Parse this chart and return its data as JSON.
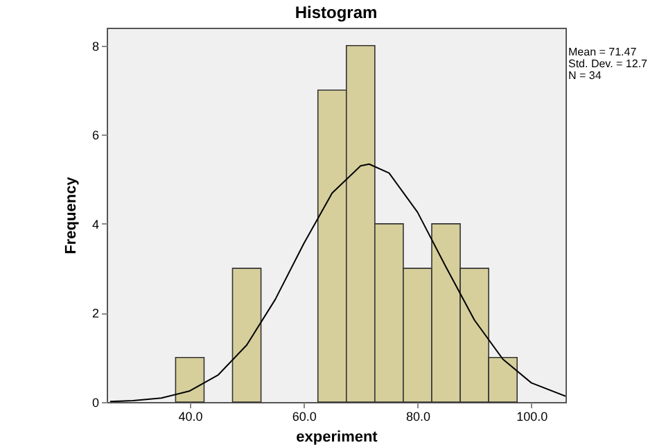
{
  "chart_data": {
    "type": "histogram",
    "title": "Histogram",
    "xlabel": "experiment",
    "ylabel": "Frequency",
    "bins": [
      37.5,
      42.5,
      47.5,
      52.5,
      57.5,
      62.5,
      67.5,
      72.5,
      77.5,
      82.5,
      87.5,
      92.5,
      97.5
    ],
    "values": [
      1,
      0,
      3,
      0,
      0,
      7,
      8,
      4,
      3,
      4,
      3,
      1
    ],
    "color": "#d6cf9c",
    "series": [
      {
        "type": "line",
        "color": "#000000",
        "x": [
          26,
          30,
          35,
          40,
          45,
          50,
          55,
          60,
          65,
          70,
          71.5,
          75,
          80,
          85,
          90,
          95,
          100,
          106
        ],
        "values": [
          0.01,
          0.03,
          0.09,
          0.25,
          0.61,
          1.28,
          2.3,
          3.55,
          4.69,
          5.3,
          5.34,
          5.14,
          4.26,
          3.03,
          1.84,
          0.96,
          0.43,
          0.13
        ]
      }
    ],
    "xlim": [
      25.4,
      106
    ],
    "xticks": [
      {
        "value": 40,
        "label": "40.0"
      },
      {
        "value": 60,
        "label": "60.0"
      },
      {
        "value": 80,
        "label": "80.0"
      },
      {
        "value": 100,
        "label": "100.0"
      }
    ],
    "ylim": [
      0,
      8.4
    ],
    "yticks": [
      0,
      2,
      4,
      6,
      8
    ],
    "grid": false,
    "annotations": [
      "Mean = 71.47",
      "Std. Dev. = 12.7",
      "N = 34"
    ]
  }
}
